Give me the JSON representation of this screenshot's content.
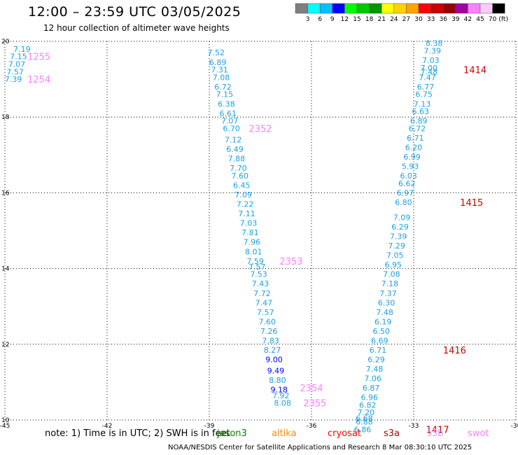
{
  "header": {
    "title": "12:00 – 23:59 UTC 03/05/2025",
    "subtitle": "12 hour collection of altimeter wave heights"
  },
  "colorbar": {
    "unit": "(ft)",
    "ticks": [
      "3",
      "6",
      "9",
      "12",
      "15",
      "18",
      "21",
      "24",
      "27",
      "30",
      "33",
      "36",
      "39",
      "42",
      "45",
      "70"
    ],
    "colors": [
      "#7f7f7f",
      "#00ffff",
      "#00bfff",
      "#0000ff",
      "#00ff00",
      "#00c800",
      "#009600",
      "#ffff00",
      "#ffd200",
      "#ffa500",
      "#ff0000",
      "#c80000",
      "#960000",
      "#a000a0",
      "#ff80ff",
      "#ffc8ff",
      "#000000"
    ]
  },
  "footer": {
    "note": "note:  1) Time is in UTC; 2) SWH is in feet",
    "satellites": [
      {
        "name": "jason3",
        "color": "#007f00"
      },
      {
        "name": "altika",
        "color": "#ff8c00"
      },
      {
        "name": "cryosat",
        "color": "#ff0000"
      },
      {
        "name": "s3a",
        "color": "#b40000"
      },
      {
        "name": "s3b",
        "color": "#c8a0ff"
      },
      {
        "name": "swot",
        "color": "#ff80ff"
      }
    ],
    "credit": "NOAA/NESDIS Center for Satellite Applications and Research     8 Mar 08:30:10 UTC 2025"
  },
  "chart_data": {
    "type": "scatter",
    "title": "12:00 – 23:59 UTC 03/05/2025",
    "subtitle": "12 hour collection of altimeter wave heights",
    "xlim": [
      -45,
      -30
    ],
    "ylim": [
      10,
      20
    ],
    "xticks": [
      "-45",
      "-42",
      "-39",
      "-36",
      "-33",
      "-30"
    ],
    "yticks": [
      "10",
      "12",
      "14",
      "16",
      "18",
      "20"
    ],
    "grid": true,
    "tracks": [
      {
        "name": "track-1",
        "color": "#1ea0e0",
        "labels": [
          {
            "lon": -44.5,
            "lat": 19.8,
            "text": "7.19"
          },
          {
            "lon": -44.6,
            "lat": 19.6,
            "text": "7.15"
          },
          {
            "lon": -44.65,
            "lat": 19.4,
            "text": "7.07"
          },
          {
            "lon": -44.7,
            "lat": 19.2,
            "text": "7.57"
          },
          {
            "lon": -44.75,
            "lat": 19.0,
            "text": "7.39"
          }
        ]
      },
      {
        "name": "track-2",
        "color": "#1ea0e0",
        "labels": [
          {
            "lon": -38.8,
            "lat": 19.7,
            "text": "7.52"
          },
          {
            "lon": -38.75,
            "lat": 19.45,
            "text": "6.89"
          },
          {
            "lon": -38.7,
            "lat": 19.25,
            "text": "7.31"
          },
          {
            "lon": -38.65,
            "lat": 19.05,
            "text": "7.08"
          },
          {
            "lon": -38.6,
            "lat": 18.8,
            "text": "6.72"
          },
          {
            "lon": -38.55,
            "lat": 18.6,
            "text": "7.15"
          },
          {
            "lon": -38.5,
            "lat": 18.35,
            "text": "6.38"
          },
          {
            "lon": -38.45,
            "lat": 18.1,
            "text": "6.61"
          },
          {
            "lon": -38.4,
            "lat": 17.9,
            "text": "7.07"
          },
          {
            "lon": -38.35,
            "lat": 17.7,
            "text": "6.70"
          },
          {
            "lon": -38.3,
            "lat": 17.4,
            "text": "7.12"
          },
          {
            "lon": -38.25,
            "lat": 17.15,
            "text": "6.49"
          },
          {
            "lon": -38.2,
            "lat": 16.9,
            "text": "7.88"
          },
          {
            "lon": -38.15,
            "lat": 16.65,
            "text": "7.70"
          },
          {
            "lon": -38.1,
            "lat": 16.45,
            "text": "7.60"
          },
          {
            "lon": -38.05,
            "lat": 16.2,
            "text": "6.45"
          },
          {
            "lon": -38.0,
            "lat": 15.95,
            "text": "7.09"
          },
          {
            "lon": -37.95,
            "lat": 15.7,
            "text": "7.22"
          },
          {
            "lon": -37.9,
            "lat": 15.45,
            "text": "7.11"
          },
          {
            "lon": -37.85,
            "lat": 15.2,
            "text": "7.03"
          },
          {
            "lon": -37.8,
            "lat": 14.95,
            "text": "7.81"
          },
          {
            "lon": -37.75,
            "lat": 14.7,
            "text": "7.96"
          },
          {
            "lon": -37.7,
            "lat": 14.45,
            "text": "8.01"
          },
          {
            "lon": -37.65,
            "lat": 14.2,
            "text": "7.59"
          },
          {
            "lon": -37.6,
            "lat": 14.05,
            "text": "7.57"
          },
          {
            "lon": -37.55,
            "lat": 13.85,
            "text": "7.53"
          },
          {
            "lon": -37.5,
            "lat": 13.6,
            "text": "7.43"
          },
          {
            "lon": -37.45,
            "lat": 13.35,
            "text": "7.72"
          },
          {
            "lon": -37.4,
            "lat": 13.1,
            "text": "7.47"
          },
          {
            "lon": -37.35,
            "lat": 12.85,
            "text": "7.57"
          },
          {
            "lon": -37.3,
            "lat": 12.6,
            "text": "7.60"
          },
          {
            "lon": -37.25,
            "lat": 12.35,
            "text": "7.26"
          },
          {
            "lon": -37.2,
            "lat": 12.1,
            "text": "7.83"
          },
          {
            "lon": -37.15,
            "lat": 11.85,
            "text": "8.27"
          },
          {
            "lon": -37.1,
            "lat": 11.6,
            "text": "9.00"
          },
          {
            "lon": -37.05,
            "lat": 11.3,
            "text": "9.49"
          },
          {
            "lon": -37.0,
            "lat": 11.05,
            "text": "8.80"
          },
          {
            "lon": -36.95,
            "lat": 10.8,
            "text": "9.18"
          },
          {
            "lon": -36.9,
            "lat": 10.65,
            "text": "7.92"
          },
          {
            "lon": -36.85,
            "lat": 10.45,
            "text": "8.08"
          }
        ]
      },
      {
        "name": "track-3",
        "color": "#1ea0e0",
        "labels": [
          {
            "lon": -32.4,
            "lat": 19.95,
            "text": "8.38"
          },
          {
            "lon": -32.45,
            "lat": 19.75,
            "text": "7.39"
          },
          {
            "lon": -32.5,
            "lat": 19.5,
            "text": "7.03"
          },
          {
            "lon": -32.55,
            "lat": 19.3,
            "text": "7.00"
          },
          {
            "lon": -32.55,
            "lat": 19.2,
            "text": "7.48"
          },
          {
            "lon": -32.6,
            "lat": 19.05,
            "text": "7.47"
          },
          {
            "lon": -32.65,
            "lat": 18.8,
            "text": "6.77"
          },
          {
            "lon": -32.7,
            "lat": 18.6,
            "text": "6.75"
          },
          {
            "lon": -32.75,
            "lat": 18.35,
            "text": "7.13"
          },
          {
            "lon": -32.8,
            "lat": 18.15,
            "text": "6.63"
          },
          {
            "lon": -32.85,
            "lat": 17.9,
            "text": "6.89"
          },
          {
            "lon": -32.9,
            "lat": 17.7,
            "text": "6.72"
          },
          {
            "lon": -32.95,
            "lat": 17.45,
            "text": "6.71"
          },
          {
            "lon": -33.0,
            "lat": 17.2,
            "text": "6.20"
          },
          {
            "lon": -33.05,
            "lat": 16.95,
            "text": "6.99"
          },
          {
            "lon": -33.1,
            "lat": 16.7,
            "text": "5.93"
          },
          {
            "lon": -33.15,
            "lat": 16.45,
            "text": "6.03"
          },
          {
            "lon": -33.2,
            "lat": 16.25,
            "text": "6.62"
          },
          {
            "lon": -33.25,
            "lat": 16.0,
            "text": "6.97"
          },
          {
            "lon": -33.3,
            "lat": 15.75,
            "text": "6.80"
          },
          {
            "lon": -33.35,
            "lat": 15.35,
            "text": "7.09"
          },
          {
            "lon": -33.4,
            "lat": 15.1,
            "text": "6.29"
          },
          {
            "lon": -33.45,
            "lat": 14.85,
            "text": "7.39"
          },
          {
            "lon": -33.5,
            "lat": 14.6,
            "text": "7.29"
          },
          {
            "lon": -33.55,
            "lat": 14.35,
            "text": "7.05"
          },
          {
            "lon": -33.6,
            "lat": 14.1,
            "text": "6.95"
          },
          {
            "lon": -33.65,
            "lat": 13.85,
            "text": "7.08"
          },
          {
            "lon": -33.7,
            "lat": 13.6,
            "text": "7.18"
          },
          {
            "lon": -33.75,
            "lat": 13.35,
            "text": "7.37"
          },
          {
            "lon": -33.8,
            "lat": 13.1,
            "text": "6.30"
          },
          {
            "lon": -33.85,
            "lat": 12.85,
            "text": "7.48"
          },
          {
            "lon": -33.9,
            "lat": 12.6,
            "text": "6.19"
          },
          {
            "lon": -33.95,
            "lat": 12.35,
            "text": "6.50"
          },
          {
            "lon": -34.0,
            "lat": 12.1,
            "text": "6.69"
          },
          {
            "lon": -34.05,
            "lat": 11.85,
            "text": "6.71"
          },
          {
            "lon": -34.1,
            "lat": 11.6,
            "text": "6.29"
          },
          {
            "lon": -34.15,
            "lat": 11.35,
            "text": "7.48"
          },
          {
            "lon": -34.2,
            "lat": 11.1,
            "text": "7.06"
          },
          {
            "lon": -34.25,
            "lat": 10.85,
            "text": "6.87"
          },
          {
            "lon": -34.3,
            "lat": 10.6,
            "text": "6.96"
          },
          {
            "lon": -34.35,
            "lat": 10.4,
            "text": "6.82"
          },
          {
            "lon": -34.4,
            "lat": 10.2,
            "text": "7.20"
          },
          {
            "lon": -34.45,
            "lat": 10.05,
            "text": "6.68"
          },
          {
            "lon": -34.45,
            "lat": 9.95,
            "text": "6.88"
          },
          {
            "lon": -34.5,
            "lat": 9.75,
            "text": "6.86"
          }
        ]
      }
    ],
    "annotations": [
      {
        "lon": -44.0,
        "lat": 19.6,
        "text": "1255",
        "color": "#ff80ff"
      },
      {
        "lon": -44.0,
        "lat": 19.0,
        "text": "1254",
        "color": "#ff80ff"
      },
      {
        "lon": -37.5,
        "lat": 17.7,
        "text": "2352",
        "color": "#ff80ff"
      },
      {
        "lon": -36.6,
        "lat": 14.2,
        "text": "2353",
        "color": "#ff80ff"
      },
      {
        "lon": -36.0,
        "lat": 10.85,
        "text": "2354",
        "color": "#ff80ff"
      },
      {
        "lon": -35.9,
        "lat": 10.45,
        "text": "2355",
        "color": "#ff80ff"
      },
      {
        "lon": -31.2,
        "lat": 19.25,
        "text": "1414",
        "color": "#cc0000"
      },
      {
        "lon": -31.3,
        "lat": 15.75,
        "text": "1415",
        "color": "#cc0000"
      },
      {
        "lon": -31.8,
        "lat": 11.85,
        "text": "1416",
        "color": "#cc0000"
      },
      {
        "lon": -32.3,
        "lat": 9.75,
        "text": "1417",
        "color": "#cc0000"
      }
    ]
  }
}
